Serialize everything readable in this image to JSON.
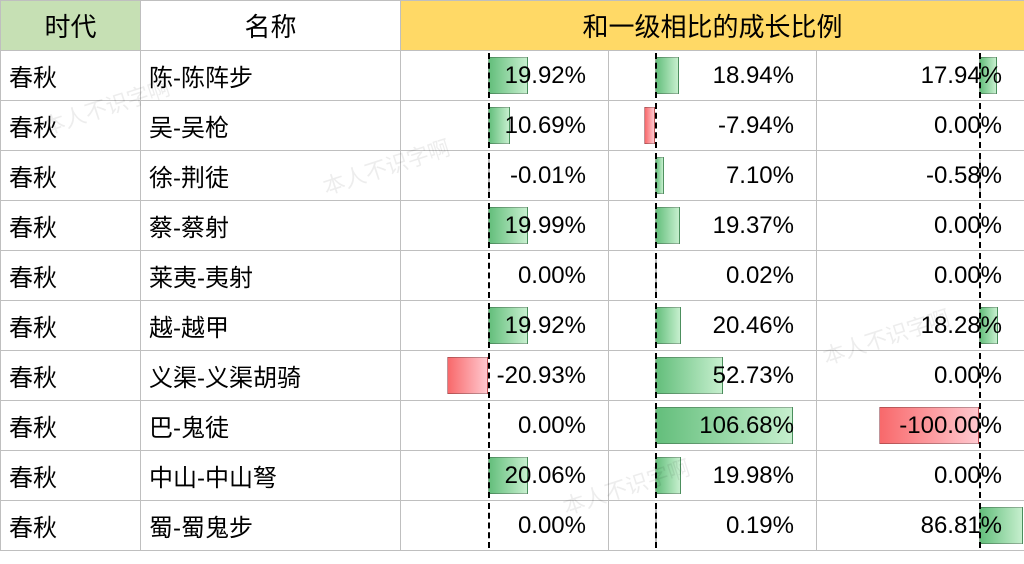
{
  "headers": {
    "era": "时代",
    "name": "名称",
    "values": "和一级相比的成长比例"
  },
  "watermark_text": "本人不识字啊",
  "colors": {
    "header_era_bg": "#c6e0b4",
    "header_name_bg": "#ffffff",
    "header_vals_bg": "#ffd966",
    "border": "#bfbfbf",
    "pos_bar_start": "#63be7b",
    "pos_bar_end": "#c6efce",
    "neg_bar_start": "#f8696b",
    "neg_bar_end": "#ffc7ce",
    "axis": "#000000"
  },
  "axis_fraction": [
    0.42,
    0.22,
    0.78
  ],
  "bar_scale": [
    2.0,
    1.3,
    1.0
  ],
  "rows": [
    {
      "era": "春秋",
      "name": "陈-陈阵步",
      "vals": [
        19.92,
        18.94,
        17.94
      ]
    },
    {
      "era": "春秋",
      "name": "吴-吴枪",
      "vals": [
        10.69,
        -7.94,
        0.0
      ]
    },
    {
      "era": "春秋",
      "name": "徐-荆徒",
      "vals": [
        -0.01,
        7.1,
        -0.58
      ]
    },
    {
      "era": "春秋",
      "name": "蔡-蔡射",
      "vals": [
        19.99,
        19.37,
        0.0
      ]
    },
    {
      "era": "春秋",
      "name": "莱夷-夷射",
      "vals": [
        0.0,
        0.02,
        0.0
      ]
    },
    {
      "era": "春秋",
      "name": "越-越甲",
      "vals": [
        19.92,
        20.46,
        18.28
      ]
    },
    {
      "era": "春秋",
      "name": "义渠-义渠胡骑",
      "vals": [
        -20.93,
        52.73,
        0.0
      ]
    },
    {
      "era": "春秋",
      "name": "巴-鬼徒",
      "vals": [
        0.0,
        106.68,
        -100.0
      ]
    },
    {
      "era": "春秋",
      "name": "中山-中山弩",
      "vals": [
        20.06,
        19.98,
        0.0
      ]
    },
    {
      "era": "春秋",
      "name": "蜀-蜀鬼步",
      "vals": [
        0.0,
        0.19,
        86.81
      ]
    }
  ]
}
